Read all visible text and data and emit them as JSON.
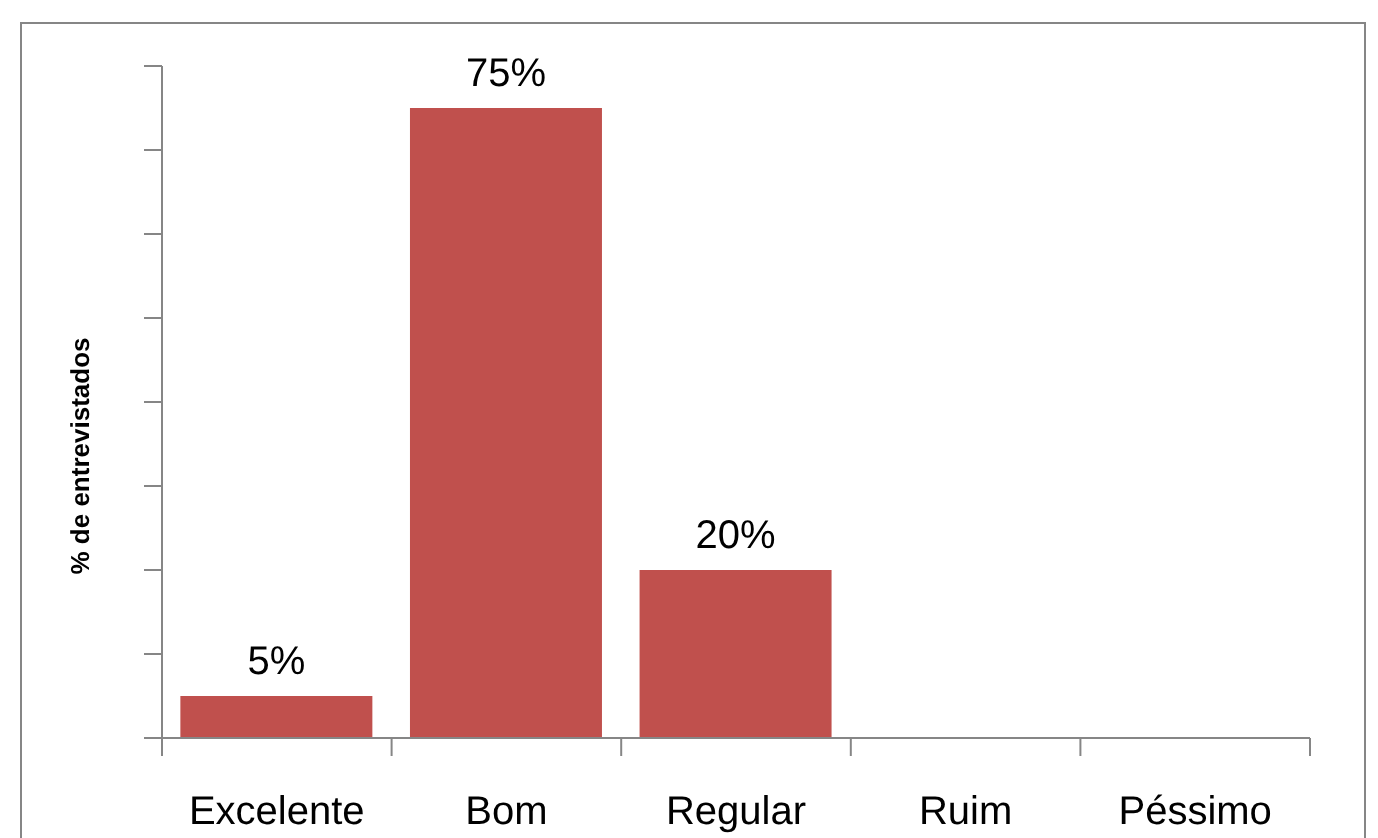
{
  "chart_data": {
    "type": "bar",
    "ylabel": "% de entrevistados",
    "categories": [
      "Excelente",
      "Bom",
      "Regular",
      "Ruim",
      "Péssimo"
    ],
    "values": [
      5,
      75,
      20,
      0,
      0
    ],
    "value_labels": [
      "5%",
      "75%",
      "20%",
      null,
      null
    ],
    "color": "#c0504d",
    "ylim": [
      0,
      80
    ],
    "yticks": [
      {
        "value": 0,
        "label": null
      },
      {
        "value": 10,
        "label": null
      },
      {
        "value": 20,
        "label": null
      },
      {
        "value": 30,
        "label": null
      },
      {
        "value": 40,
        "label": null
      },
      {
        "value": 50,
        "label": null
      },
      {
        "value": 60,
        "label": null
      },
      {
        "value": 70,
        "label": null
      },
      {
        "value": 80,
        "label": null
      }
    ],
    "tick_labels": "x"
  }
}
